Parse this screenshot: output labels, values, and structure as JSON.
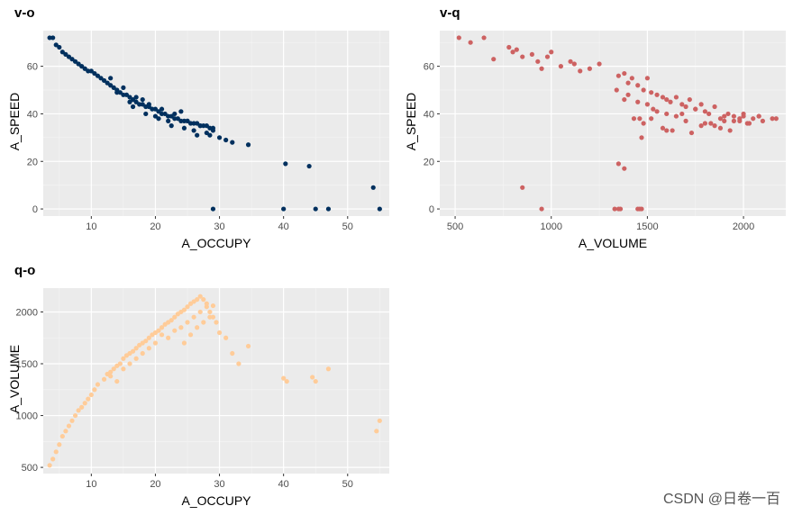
{
  "watermark": "CSDN @日卷一百",
  "style": {
    "panel_bg": "#ebebeb",
    "grid_major": "#ffffff",
    "axis_text": "#4d4d4d"
  },
  "chart_data": [
    {
      "id": "vo",
      "type": "scatter",
      "title": "v-o",
      "xlabel": "A_OCCUPY",
      "ylabel": "A_SPEED",
      "color": "#00305e",
      "xlim": [
        2.5,
        56.5
      ],
      "ylim": [
        -3,
        75
      ],
      "xticks": [
        10,
        20,
        30,
        40,
        50
      ],
      "yticks": [
        0,
        20,
        40,
        60
      ],
      "x": [
        3.5,
        4.0,
        4.5,
        5.0,
        5.5,
        6.0,
        6.5,
        7.0,
        7.5,
        8.0,
        8.5,
        9.0,
        9.5,
        10.0,
        10.5,
        11.0,
        11.5,
        12.0,
        12.5,
        13.0,
        13.5,
        14.0,
        14.5,
        15.0,
        15.5,
        16.0,
        16.5,
        17.0,
        17.5,
        18.0,
        18.5,
        19.0,
        19.5,
        20.0,
        20.5,
        21.0,
        21.5,
        22.0,
        22.5,
        23.0,
        23.5,
        24.0,
        24.5,
        25.0,
        25.5,
        26.0,
        26.5,
        27.0,
        27.5,
        28.0,
        28.5,
        29.0,
        13.0,
        15.0,
        17.0,
        19.0,
        21.0,
        23.0,
        25.0,
        27.0,
        29.0,
        14.0,
        16.0,
        18.0,
        20.0,
        22.0,
        24.0,
        26.0,
        28.0,
        16.5,
        18.5,
        20.5,
        22.5,
        24.5,
        26.5,
        28.5,
        30.0,
        31.0,
        32.0,
        34.5,
        29.0,
        40.0,
        40.3,
        44.0,
        45.0,
        47.0,
        54.0,
        55.0
      ],
      "y": [
        72,
        72,
        69,
        68,
        66,
        65,
        64,
        63,
        62,
        61,
        60,
        59,
        58,
        58,
        57,
        56,
        55,
        54,
        53,
        52,
        51,
        50,
        49,
        48,
        48,
        47,
        46,
        45,
        44,
        44,
        43,
        43,
        42,
        42,
        41,
        40,
        40,
        39,
        39,
        38,
        38,
        37,
        37,
        37,
        36,
        36,
        36,
        35,
        35,
        35,
        34,
        34,
        55,
        51,
        47,
        44,
        42,
        40,
        37,
        35,
        33,
        49,
        45,
        46,
        39,
        37,
        41,
        33,
        32,
        43,
        40,
        38,
        35,
        34,
        31,
        31,
        30,
        29,
        28,
        27,
        0,
        0,
        19,
        18,
        0,
        0,
        9,
        0
      ],
      "note": "dense cluster along decreasing trend; outliers at high occupancy"
    },
    {
      "id": "vq",
      "type": "scatter",
      "title": "v-q",
      "xlabel": "A_VOLUME",
      "ylabel": "A_SPEED",
      "color": "#cd6262",
      "xlim": [
        420,
        2220
      ],
      "ylim": [
        -3,
        75
      ],
      "xticks": [
        500,
        1000,
        1500,
        2000
      ],
      "yticks": [
        0,
        20,
        40,
        60
      ],
      "x": [
        520,
        580,
        650,
        700,
        780,
        800,
        820,
        850,
        900,
        930,
        950,
        980,
        1000,
        1050,
        1100,
        1120,
        1150,
        1200,
        1250,
        1350,
        1380,
        1400,
        1420,
        1450,
        1480,
        1500,
        1520,
        1550,
        1580,
        1600,
        1620,
        1650,
        1680,
        1700,
        1720,
        1750,
        1780,
        1800,
        1820,
        1850,
        1880,
        1900,
        1920,
        1950,
        1980,
        2000,
        2020,
        2050,
        2080,
        2100,
        2150,
        2170,
        1400,
        1450,
        1500,
        1550,
        1600,
        1650,
        1700,
        1750,
        1800,
        1850,
        1900,
        1950,
        2000,
        1430,
        1480,
        1530,
        1580,
        1630,
        1680,
        1730,
        1780,
        1830,
        1880,
        1930,
        1980,
        2030,
        2080,
        1460,
        1470,
        1350,
        1380,
        1330,
        1350,
        1360,
        1450,
        1460,
        1470,
        950,
        850,
        1340,
        1380,
        1520,
        1600
      ],
      "y": [
        72,
        70,
        72,
        63,
        68,
        66,
        67,
        64,
        65,
        62,
        59,
        64,
        66,
        60,
        62,
        61,
        58,
        59,
        61,
        56,
        57,
        53,
        55,
        52,
        50,
        55,
        49,
        48,
        47,
        46,
        45,
        47,
        44,
        43,
        46,
        42,
        44,
        41,
        40,
        43,
        38,
        39,
        40,
        37,
        38,
        39,
        36,
        38,
        39,
        37,
        38,
        38,
        48,
        45,
        44,
        41,
        40,
        39,
        37,
        42,
        36,
        35,
        37,
        39,
        40,
        38,
        36,
        42,
        34,
        33,
        40,
        32,
        35,
        36,
        34,
        33,
        37,
        36,
        39,
        38,
        30,
        19,
        17,
        0,
        0,
        0,
        0,
        0,
        0,
        0,
        9,
        50,
        46,
        38,
        33
      ]
    },
    {
      "id": "qo",
      "type": "scatter",
      "title": "q-o",
      "xlabel": "A_OCCUPY",
      "ylabel": "A_VOLUME",
      "color": "#ffcc99",
      "xlim": [
        2.5,
        56.5
      ],
      "ylim": [
        440,
        2230
      ],
      "xticks": [
        10,
        20,
        30,
        40,
        50
      ],
      "yticks": [
        500,
        1000,
        1500,
        2000
      ],
      "x": [
        3.5,
        4.0,
        4.5,
        5.0,
        5.5,
        6.0,
        6.5,
        7.0,
        7.5,
        8.0,
        8.5,
        9.0,
        9.5,
        10.0,
        10.5,
        11.0,
        12.0,
        12.5,
        13.0,
        13.5,
        14.0,
        14.5,
        15.0,
        15.5,
        16.0,
        16.5,
        17.0,
        17.5,
        18.0,
        18.5,
        19.0,
        19.5,
        20.0,
        20.5,
        21.0,
        21.5,
        22.0,
        22.5,
        23.0,
        23.5,
        24.0,
        24.5,
        25.0,
        25.5,
        26.0,
        26.5,
        27.0,
        27.5,
        28.0,
        28.5,
        29.0,
        29.5,
        16.0,
        18.0,
        20.0,
        22.0,
        24.0,
        26.0,
        28.0,
        17.0,
        19.0,
        21.0,
        23.0,
        25.0,
        27.0,
        29.0,
        24.5,
        25.5,
        26.5,
        27.5,
        28.5,
        30.0,
        31.0,
        32.0,
        33.0,
        34.5,
        13.0,
        14.0,
        15.0,
        40.0,
        40.5,
        44.5,
        45.0,
        47.0,
        54.5,
        55.0
      ],
      "y": [
        520,
        580,
        650,
        720,
        800,
        850,
        900,
        950,
        1000,
        1050,
        1080,
        1120,
        1160,
        1200,
        1250,
        1300,
        1350,
        1400,
        1420,
        1450,
        1480,
        1500,
        1550,
        1580,
        1600,
        1620,
        1650,
        1680,
        1700,
        1720,
        1750,
        1780,
        1800,
        1820,
        1850,
        1880,
        1900,
        1920,
        1950,
        1980,
        2000,
        2020,
        2050,
        2080,
        2100,
        2120,
        2150,
        2120,
        2080,
        2000,
        1950,
        1900,
        1500,
        1600,
        1700,
        1750,
        1850,
        1950,
        2050,
        1550,
        1650,
        1780,
        1820,
        1900,
        2000,
        2060,
        1700,
        1780,
        1850,
        1900,
        1950,
        1800,
        1750,
        1600,
        1500,
        1670,
        1380,
        1330,
        1450,
        1360,
        1330,
        1370,
        1330,
        1450,
        850,
        950
      ]
    }
  ]
}
